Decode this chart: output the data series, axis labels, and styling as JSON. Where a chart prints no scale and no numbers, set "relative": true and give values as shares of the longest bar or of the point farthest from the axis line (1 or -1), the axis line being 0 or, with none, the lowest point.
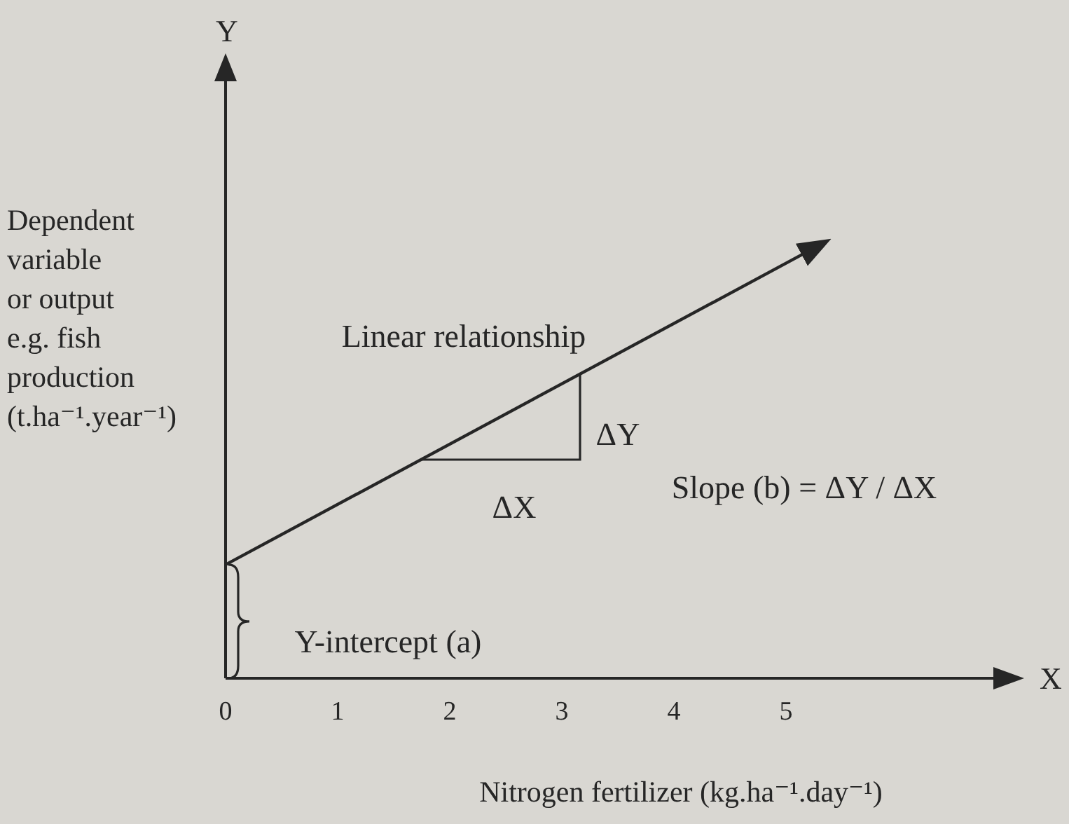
{
  "chart_data": {
    "type": "line",
    "xlabel": "Nitrogen fertilizer (kg.ha⁻¹.day⁻¹)",
    "ylabel": "Dependent variable or output e.g. fish production (t.ha⁻¹.year⁻¹)",
    "x": [
      0,
      5.36
    ],
    "values": [
      0.26,
      1
    ],
    "color": "#262626",
    "relative": true,
    "xlim": [
      0,
      6.85
    ],
    "xticks": [
      0,
      1,
      2,
      3,
      4,
      5
    ],
    "marker": "none",
    "line_style": "solid",
    "tick_labels": "x",
    "annotations": [
      "Y",
      "X",
      "Linear relationship",
      "ΔY",
      "ΔX",
      "Slope (b) = ΔY / ΔX",
      "Y-intercept (a)"
    ]
  }
}
